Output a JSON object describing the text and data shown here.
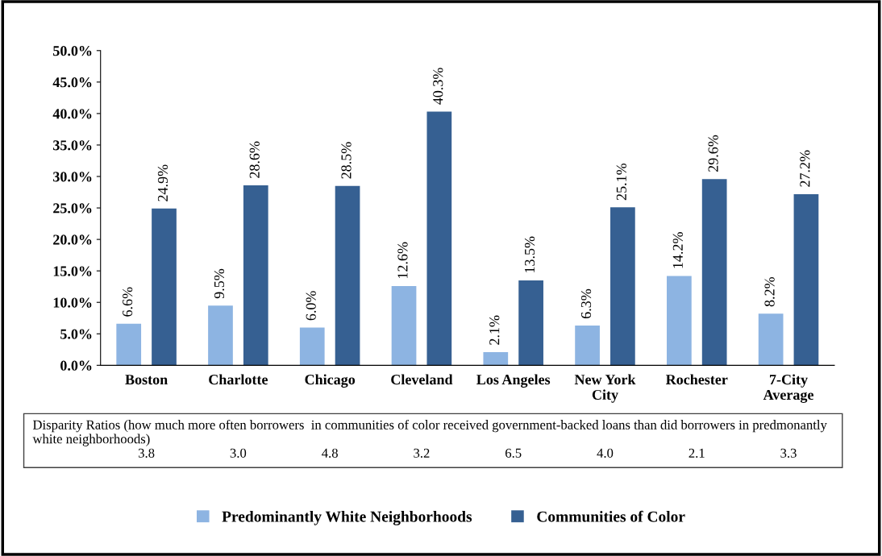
{
  "chart_data": {
    "type": "bar",
    "categories": [
      "Boston",
      "Charlotte",
      "Chicago",
      "Cleveland",
      "Los Angeles",
      "New York City",
      "Rochester",
      "7-City Average"
    ],
    "series": [
      {
        "name": "Predominantly White Neighborhoods",
        "color": "#8db4e2",
        "values": [
          6.6,
          9.5,
          6.0,
          12.6,
          2.1,
          6.3,
          14.2,
          8.2
        ],
        "value_labels": [
          "6.6%",
          "9.5%",
          "6.0%",
          "12.6%",
          "2.1%",
          "6.3%",
          "14.2%",
          "8.2%"
        ]
      },
      {
        "name": "Communities of Color",
        "color": "#366092",
        "values": [
          24.9,
          28.6,
          28.5,
          40.3,
          13.5,
          25.1,
          29.6,
          27.2
        ],
        "value_labels": [
          "24.9%",
          "28.6%",
          "28.5%",
          "40.3%",
          "13.5%",
          "25.1%",
          "29.6%",
          "27.2%"
        ]
      }
    ],
    "ylim": [
      0,
      50
    ],
    "yticks": [
      {
        "value": 0,
        "label": "0.0%"
      },
      {
        "value": 5,
        "label": "5.0%"
      },
      {
        "value": 10,
        "label": "10.0%"
      },
      {
        "value": 15,
        "label": "15.0%"
      },
      {
        "value": 20,
        "label": "20.0%"
      },
      {
        "value": 25,
        "label": "25.0%"
      },
      {
        "value": 30,
        "label": "30.0%"
      },
      {
        "value": 35,
        "label": "35.0%"
      },
      {
        "value": 40,
        "label": "40.0%"
      },
      {
        "value": 45,
        "label": "45.0%"
      },
      {
        "value": 50,
        "label": "50.0%"
      }
    ],
    "grid": false,
    "legend": "bottom",
    "annotations": [
      "Disparity Ratios (how much more often borrowers  in communities of color received government-backed loans than did borrowers in predmonantly white neighborhoods)",
      "3.8",
      "3.0",
      "4.8",
      "3.2",
      "6.5",
      "4.0",
      "2.1",
      "3.3"
    ]
  }
}
